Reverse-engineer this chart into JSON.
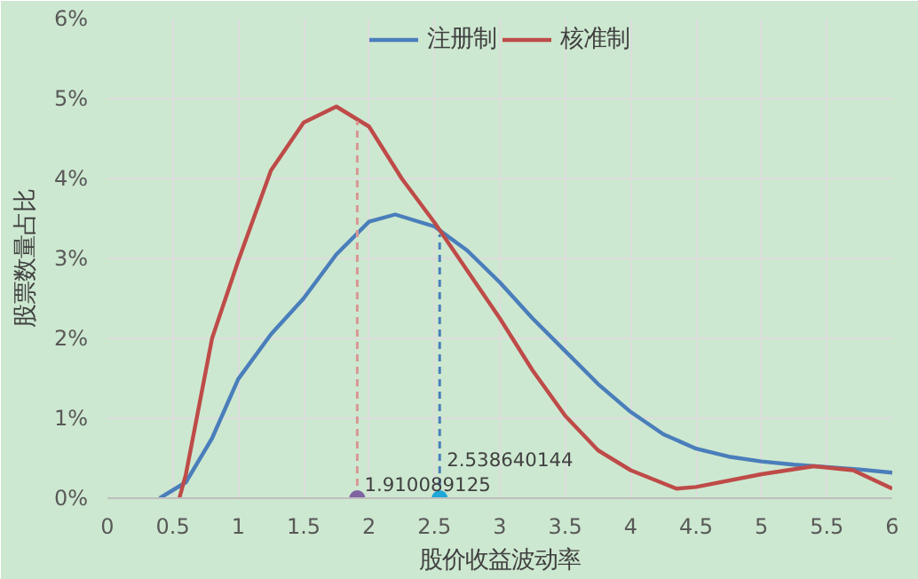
{
  "chart_data": {
    "type": "line",
    "xlabel": "股价收益波动率",
    "ylabel": "股票数量占比",
    "xlim": [
      0,
      6
    ],
    "xticks": [
      0,
      0.5,
      1,
      1.5,
      2,
      2.5,
      3,
      3.5,
      4,
      4.5,
      5,
      5.5,
      6
    ],
    "ylim": [
      0,
      6
    ],
    "yticks": [
      {
        "value": 0,
        "label": "0%"
      },
      {
        "value": 1,
        "label": "1%"
      },
      {
        "value": 2,
        "label": "2%"
      },
      {
        "value": 3,
        "label": "3%"
      },
      {
        "value": 4,
        "label": "4%"
      },
      {
        "value": 5,
        "label": "5%"
      },
      {
        "value": 6,
        "label": "6%"
      }
    ],
    "grid": true,
    "legend": "top",
    "series": [
      {
        "name": "注册制",
        "color": "#4a7ebb",
        "x": [
          0.4,
          0.6,
          0.8,
          1,
          1.25,
          1.5,
          1.75,
          2,
          2.2,
          2.5,
          2.75,
          3,
          3.25,
          3.5,
          3.75,
          4,
          4.25,
          4.5,
          4.75,
          5,
          5.25,
          5.5,
          5.75,
          6
        ],
        "values": [
          0,
          0.2,
          0.75,
          1.49,
          2.05,
          2.5,
          3.05,
          3.46,
          3.55,
          3.4,
          3.1,
          2.7,
          2.25,
          1.84,
          1.43,
          1.08,
          0.8,
          0.62,
          0.52,
          0.46,
          0.42,
          0.39,
          0.36,
          0.32
        ]
      },
      {
        "name": "核准制",
        "color": "#be4b48",
        "x": [
          0.55,
          0.6,
          0.8,
          1,
          1.25,
          1.5,
          1.75,
          2,
          2.25,
          2.5,
          2.75,
          3,
          3.25,
          3.5,
          3.75,
          4,
          4.35,
          4.5,
          5,
          5.4,
          5.7,
          6
        ],
        "values": [
          0,
          0.3,
          2.0,
          2.97,
          4.1,
          4.7,
          4.9,
          4.65,
          4.0,
          3.45,
          2.85,
          2.25,
          1.6,
          1.03,
          0.6,
          0.35,
          0.12,
          0.14,
          0.3,
          0.4,
          0.35,
          0.12
        ]
      },
      {
        "type": "line",
        "line_style": "dashed",
        "color": "#d99694",
        "x": [
          1.91,
          1.91
        ],
        "values": [
          0,
          4.72
        ]
      },
      {
        "type": "line",
        "line_style": "dashed",
        "color": "#4a7ebb",
        "x": [
          2.54,
          2.54
        ],
        "values": [
          0,
          3.3
        ]
      },
      {
        "type": "scatter",
        "marker": "circle",
        "color": "#8064a2",
        "x": [
          1.91
        ],
        "values": [
          0
        ]
      },
      {
        "type": "scatter",
        "marker": "circle",
        "color": "#1fa8d8",
        "x": [
          2.54
        ],
        "values": [
          0
        ]
      }
    ],
    "annotations": [
      {
        "text": "1.910089125",
        "x": 1.91,
        "y": 0
      },
      {
        "text": "2.538640144",
        "x": 2.54,
        "y": 0
      }
    ]
  }
}
